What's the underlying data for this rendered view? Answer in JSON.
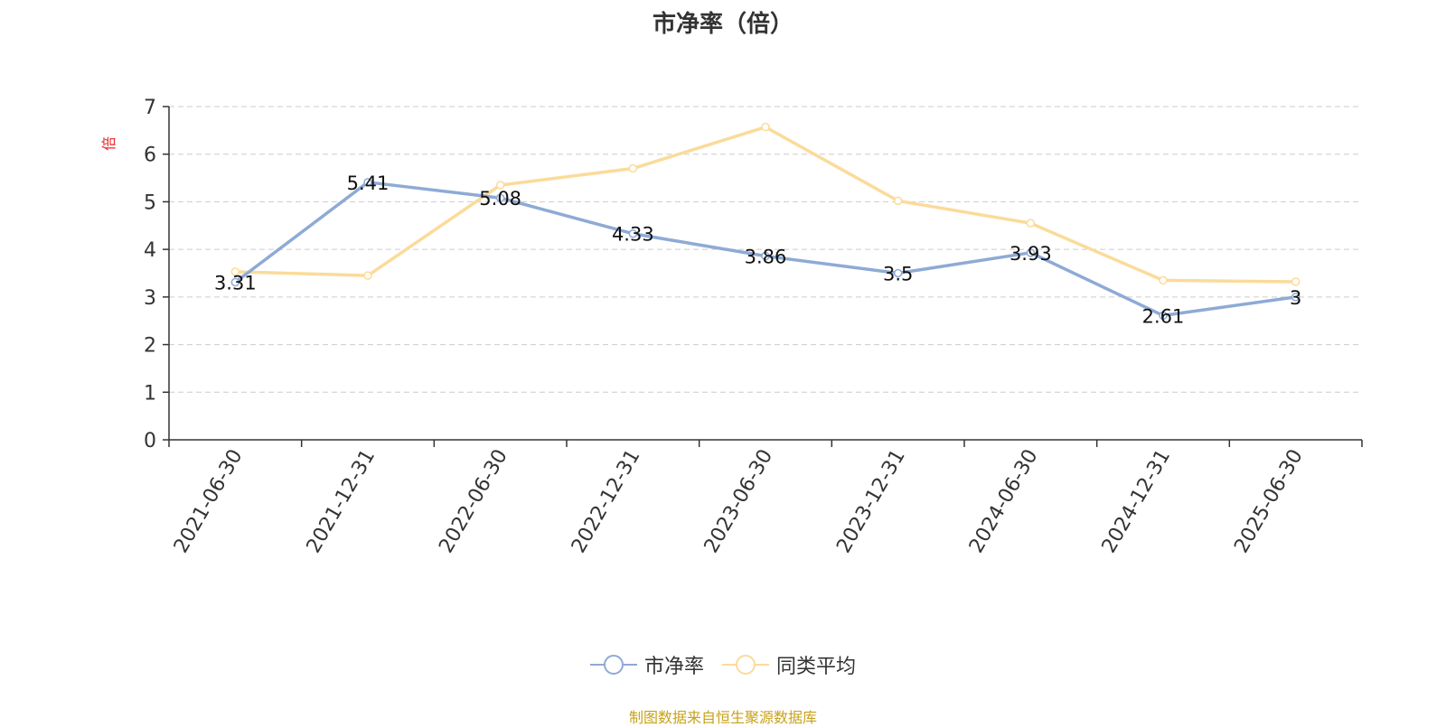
{
  "title": "市净率（倍）",
  "source": "制图数据来自恒生聚源数据库",
  "chart_data": {
    "type": "line",
    "ylabel": "倍",
    "xlabel": "",
    "ylim": [
      0,
      7
    ],
    "yticks": [
      0,
      1,
      2,
      3,
      4,
      5,
      6,
      7
    ],
    "grid": true,
    "legend_position": "bottom",
    "categories": [
      "2021-06-30",
      "2021-12-31",
      "2022-06-30",
      "2022-12-31",
      "2023-06-30",
      "2023-12-31",
      "2024-06-30",
      "2024-12-31",
      "2025-06-30"
    ],
    "series": [
      {
        "name": "市净率",
        "color": "#8eaad6",
        "values": [
          3.31,
          5.41,
          5.08,
          4.33,
          3.86,
          3.5,
          3.93,
          2.61,
          3
        ],
        "labels": [
          "3.31",
          "5.41",
          "5.08",
          "4.33",
          "3.86",
          "3.5",
          "3.93",
          "2.61",
          "3"
        ]
      },
      {
        "name": "同类平均",
        "color": "#fbdb9a",
        "values": [
          3.53,
          3.45,
          5.35,
          5.7,
          6.57,
          5.02,
          4.55,
          3.35,
          3.32
        ]
      }
    ]
  },
  "legend": [
    {
      "label": "市净率",
      "color": "#8eaad6"
    },
    {
      "label": "同类平均",
      "color": "#fbdb9a"
    }
  ]
}
